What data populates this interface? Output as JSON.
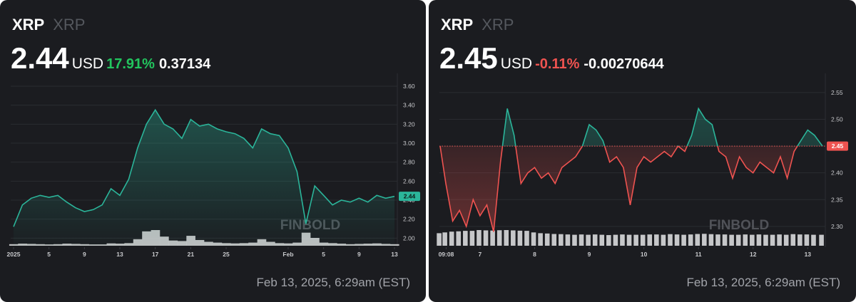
{
  "chart_data": [
    {
      "type": "area",
      "symbol": "XRP",
      "name": "XRP",
      "price": 2.44,
      "currency": "USD",
      "change_percent": {
        "value": 17.91,
        "label": "17.91%"
      },
      "change": 0.37134,
      "timestamp": "Feb 13, 2025, 6:29am (EST)",
      "watermark": "FINBOLD",
      "line_color": "#2bb59a",
      "down_color": "#ef5350",
      "volume_color": "#d9dadc",
      "x": [
        "2025-01-01",
        "2025-01-02",
        "2025-01-03",
        "2025-01-04",
        "2025-01-05",
        "2025-01-06",
        "2025-01-07",
        "2025-01-08",
        "2025-01-09",
        "2025-01-10",
        "2025-01-11",
        "2025-01-12",
        "2025-01-13",
        "2025-01-14",
        "2025-01-15",
        "2025-01-16",
        "2025-01-17",
        "2025-01-18",
        "2025-01-19",
        "2025-01-20",
        "2025-01-21",
        "2025-01-22",
        "2025-01-23",
        "2025-01-24",
        "2025-01-25",
        "2025-01-26",
        "2025-01-27",
        "2025-01-28",
        "2025-01-29",
        "2025-01-30",
        "2025-01-31",
        "2025-02-01",
        "2025-02-02",
        "2025-02-03",
        "2025-02-04",
        "2025-02-05",
        "2025-02-06",
        "2025-02-07",
        "2025-02-08",
        "2025-02-09",
        "2025-02-10",
        "2025-02-11",
        "2025-02-12",
        "2025-02-13"
      ],
      "values": [
        2.12,
        2.35,
        2.42,
        2.45,
        2.43,
        2.45,
        2.38,
        2.32,
        2.28,
        2.3,
        2.35,
        2.52,
        2.45,
        2.62,
        2.95,
        3.2,
        3.35,
        3.2,
        3.15,
        3.05,
        3.25,
        3.18,
        3.2,
        3.15,
        3.12,
        3.1,
        3.05,
        2.95,
        3.15,
        3.1,
        3.08,
        2.95,
        2.7,
        2.15,
        2.55,
        2.45,
        2.35,
        2.4,
        2.38,
        2.42,
        2.38,
        2.45,
        2.42,
        2.44
      ],
      "volume": [
        6,
        8,
        7,
        6,
        5,
        6,
        8,
        7,
        6,
        5,
        5,
        9,
        8,
        10,
        25,
        55,
        60,
        35,
        20,
        18,
        38,
        22,
        15,
        12,
        10,
        9,
        10,
        12,
        25,
        15,
        10,
        9,
        12,
        50,
        30,
        12,
        10,
        8,
        6,
        7,
        8,
        9,
        7,
        6
      ],
      "xlim": [
        "2025-01-01",
        "2025-02-13"
      ],
      "xticks": [
        {
          "value": "2025-01-01",
          "label": "2025"
        },
        {
          "value": "2025-01-05",
          "label": "5"
        },
        {
          "value": "2025-01-09",
          "label": "9"
        },
        {
          "value": "2025-01-13",
          "label": "13"
        },
        {
          "value": "2025-01-17",
          "label": "17"
        },
        {
          "value": "2025-01-21",
          "label": "21"
        },
        {
          "value": "2025-01-25",
          "label": "25"
        },
        {
          "value": "2025-02-01",
          "label": "Feb"
        },
        {
          "value": "2025-02-05",
          "label": "5"
        },
        {
          "value": "2025-02-09",
          "label": "9"
        },
        {
          "value": "2025-02-13",
          "label": "13"
        }
      ],
      "ylim": [
        1.92,
        3.72
      ],
      "yticks": [
        {
          "value": 2,
          "label": "2.00"
        },
        {
          "value": 2.2,
          "label": "2.20"
        },
        {
          "value": 2.4,
          "label": "2.40"
        },
        {
          "value": 2.6,
          "label": "2.60"
        },
        {
          "value": 2.8,
          "label": "2.80"
        },
        {
          "value": 3,
          "label": "3.00"
        },
        {
          "value": 3.2,
          "label": "3.20"
        },
        {
          "value": 3.4,
          "label": "3.40"
        },
        {
          "value": 3.6,
          "label": "3.60"
        }
      ],
      "grid": true
    },
    {
      "type": "baseline",
      "symbol": "XRP",
      "name": "XRP",
      "price": 2.45,
      "currency": "USD",
      "change_percent": {
        "value": -0.11,
        "label": "-0.11%"
      },
      "change": -0.00270644,
      "timestamp": "Feb 13, 2025, 6:29am (EST)",
      "watermark": "FINBOLD",
      "baseline": 2.45,
      "line_color": "#2bb59a",
      "down_color": "#ef5350",
      "volume_color": "#d9dadc",
      "x": [
        "2025-02-06T06:29",
        "2025-02-06T09:00",
        "2025-02-06T12:00",
        "2025-02-06T15:00",
        "2025-02-06T18:00",
        "2025-02-06T21:00",
        "2025-02-07T00:00",
        "2025-02-07T03:00",
        "2025-02-07T06:00",
        "2025-02-07T09:00",
        "2025-02-07T12:00",
        "2025-02-07T15:00",
        "2025-02-07T18:00",
        "2025-02-07T21:00",
        "2025-02-08T00:00",
        "2025-02-08T03:00",
        "2025-02-08T06:00",
        "2025-02-08T09:00",
        "2025-02-08T12:00",
        "2025-02-08T15:00",
        "2025-02-08T18:00",
        "2025-02-08T21:00",
        "2025-02-09T00:00",
        "2025-02-09T03:00",
        "2025-02-09T06:00",
        "2025-02-09T09:00",
        "2025-02-09T12:00",
        "2025-02-09T15:00",
        "2025-02-09T18:00",
        "2025-02-09T21:00",
        "2025-02-10T00:00",
        "2025-02-10T03:00",
        "2025-02-10T06:00",
        "2025-02-10T09:00",
        "2025-02-10T12:00",
        "2025-02-10T15:00",
        "2025-02-10T18:00",
        "2025-02-10T21:00",
        "2025-02-11T00:00",
        "2025-02-11T03:00",
        "2025-02-11T06:00",
        "2025-02-11T09:00",
        "2025-02-11T12:00",
        "2025-02-11T15:00",
        "2025-02-11T18:00",
        "2025-02-11T21:00",
        "2025-02-12T00:00",
        "2025-02-12T03:00",
        "2025-02-12T06:00",
        "2025-02-12T09:00",
        "2025-02-12T12:00",
        "2025-02-12T15:00",
        "2025-02-12T18:00",
        "2025-02-12T21:00",
        "2025-02-13T00:00",
        "2025-02-13T03:00",
        "2025-02-13T06:29"
      ],
      "values": [
        2.45,
        2.38,
        2.31,
        2.33,
        2.3,
        2.35,
        2.32,
        2.34,
        2.29,
        2.42,
        2.52,
        2.47,
        2.38,
        2.4,
        2.41,
        2.39,
        2.4,
        2.38,
        2.41,
        2.42,
        2.43,
        2.45,
        2.49,
        2.48,
        2.46,
        2.42,
        2.43,
        2.41,
        2.34,
        2.41,
        2.43,
        2.42,
        2.43,
        2.44,
        2.43,
        2.45,
        2.44,
        2.47,
        2.52,
        2.5,
        2.49,
        2.44,
        2.43,
        2.39,
        2.43,
        2.41,
        2.4,
        2.42,
        2.41,
        2.4,
        2.43,
        2.39,
        2.44,
        2.46,
        2.48,
        2.47,
        2.45
      ],
      "volume": [
        80,
        85,
        90,
        92,
        95,
        95,
        100,
        98,
        97,
        99,
        100,
        98,
        96,
        95,
        85,
        80,
        78,
        75,
        74,
        72,
        70,
        72,
        70,
        72,
        70,
        68,
        70,
        72,
        70,
        70,
        70,
        72,
        72,
        70,
        74,
        72,
        70,
        72,
        75,
        76,
        74,
        72,
        72,
        70,
        70,
        72,
        70,
        72,
        70,
        70,
        72,
        70,
        74,
        72,
        72,
        70,
        70
      ],
      "xlim": [
        "2025-02-06T06:29",
        "2025-02-13T06:29"
      ],
      "xticks": [
        {
          "value": "2025-02-06T09:08",
          "label": "09:08"
        },
        {
          "value": "2025-02-07T00:00",
          "label": "7"
        },
        {
          "value": "2025-02-08T00:00",
          "label": "8"
        },
        {
          "value": "2025-02-09T00:00",
          "label": "9"
        },
        {
          "value": "2025-02-10T00:00",
          "label": "10"
        },
        {
          "value": "2025-02-11T00:00",
          "label": "11"
        },
        {
          "value": "2025-02-12T00:00",
          "label": "12"
        },
        {
          "value": "2025-02-13T00:00",
          "label": "13"
        }
      ],
      "ylim": [
        2.264,
        2.583
      ],
      "yticks": [
        {
          "value": 2.3,
          "label": "2.30"
        },
        {
          "value": 2.35,
          "label": "2.35"
        },
        {
          "value": 2.4,
          "label": "2.40"
        },
        {
          "value": 2.45,
          "label": "2.45"
        },
        {
          "value": 2.5,
          "label": "2.50"
        },
        {
          "value": 2.55,
          "label": "2.55"
        }
      ],
      "grid": true
    }
  ]
}
